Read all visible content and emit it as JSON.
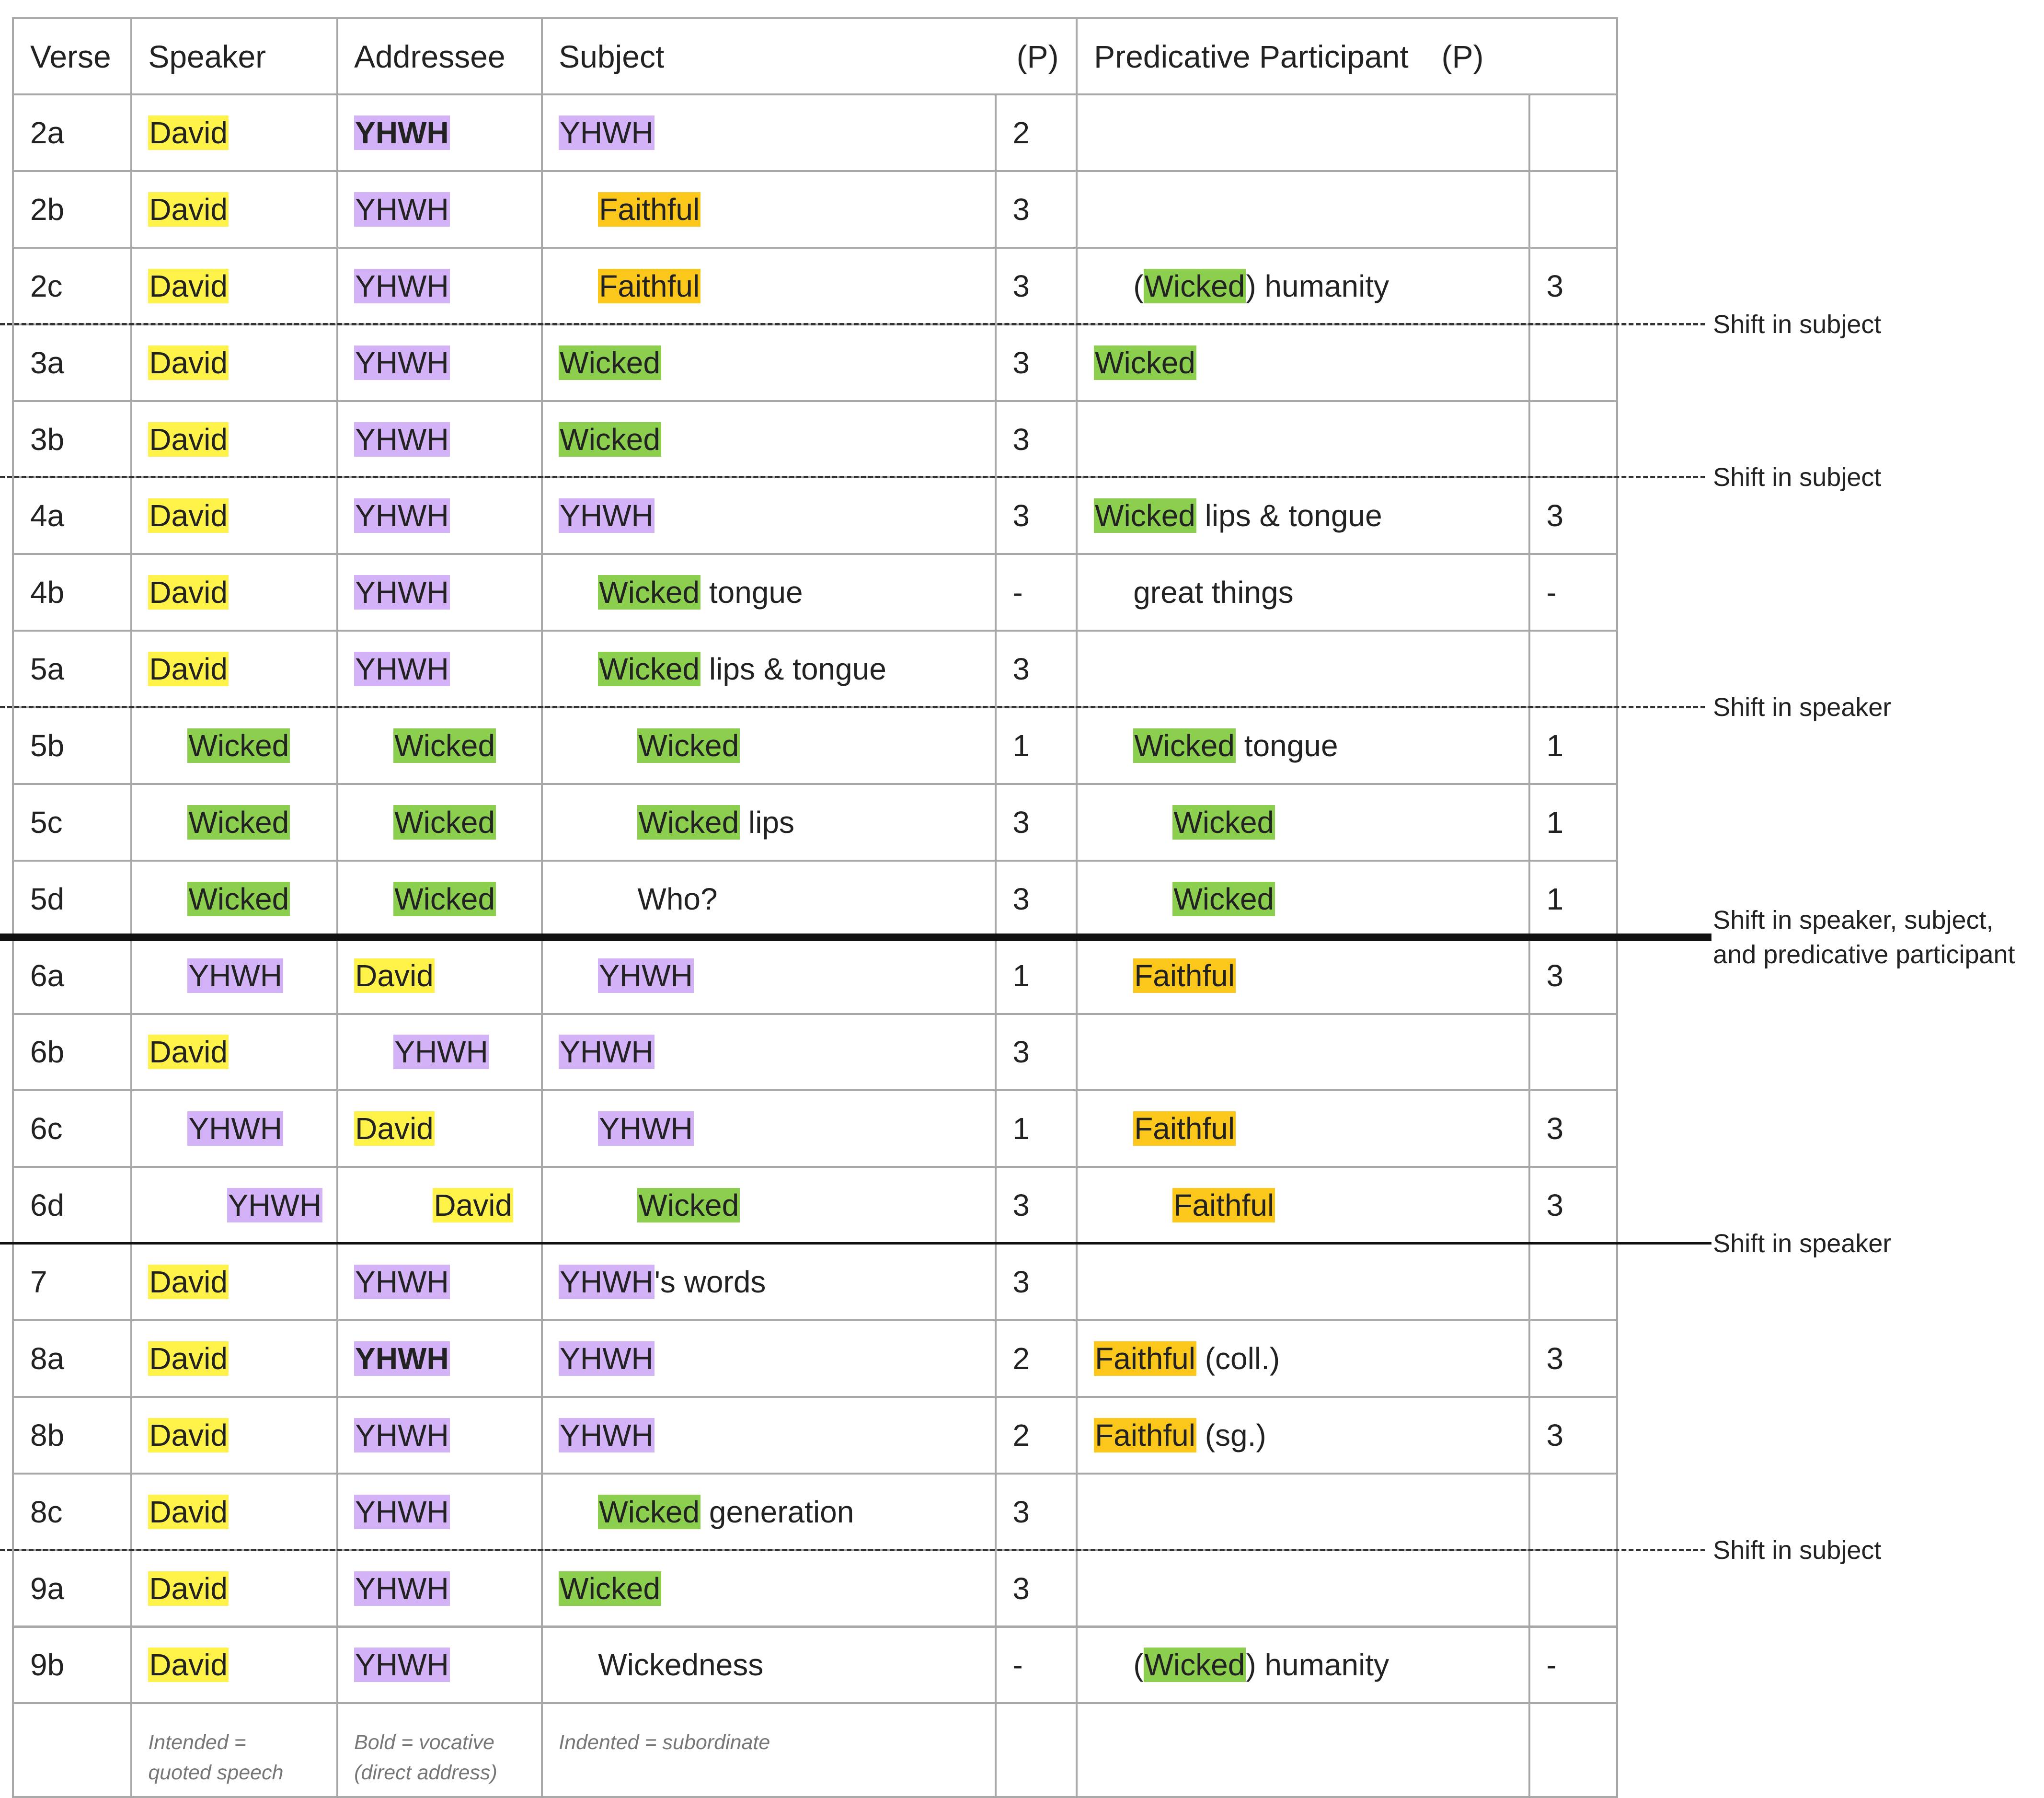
{
  "colors": {
    "yellow": "#fff34a",
    "purple": "#d3b2f7",
    "green": "#8ccf4f",
    "orange": "#fbc71a",
    "grid": "#a8a8a8"
  },
  "headers": {
    "verse": "Verse",
    "speaker": "Speaker",
    "addressee": "Addressee",
    "subject": "Subject",
    "subject_p": "(P)",
    "predicative": "Predicative Participant",
    "predicative_p": "(P)"
  },
  "rows": [
    {
      "verse": "2a",
      "speaker": {
        "indent": 0,
        "parts": [
          {
            "t": "David",
            "hl": "yellow"
          }
        ]
      },
      "addressee": {
        "indent": 0,
        "parts": [
          {
            "t": "YHWH",
            "hl": "purple",
            "bold": true
          }
        ]
      },
      "subject": {
        "indent": 0,
        "parts": [
          {
            "t": "YHWH",
            "hl": "purple"
          }
        ]
      },
      "subject_p": "2",
      "pred": {
        "indent": 0,
        "parts": []
      },
      "pred_p": ""
    },
    {
      "verse": "2b",
      "speaker": {
        "indent": 0,
        "parts": [
          {
            "t": "David",
            "hl": "yellow"
          }
        ]
      },
      "addressee": {
        "indent": 0,
        "parts": [
          {
            "t": "YHWH",
            "hl": "purple"
          }
        ]
      },
      "subject": {
        "indent": 1,
        "parts": [
          {
            "t": "Faithful",
            "hl": "orange"
          }
        ]
      },
      "subject_p": "3",
      "pred": {
        "indent": 0,
        "parts": []
      },
      "pred_p": ""
    },
    {
      "verse": "2c",
      "speaker": {
        "indent": 0,
        "parts": [
          {
            "t": "David",
            "hl": "yellow"
          }
        ]
      },
      "addressee": {
        "indent": 0,
        "parts": [
          {
            "t": "YHWH",
            "hl": "purple"
          }
        ]
      },
      "subject": {
        "indent": 1,
        "parts": [
          {
            "t": "Faithful",
            "hl": "orange"
          }
        ]
      },
      "subject_p": "3",
      "pred": {
        "indent": 1,
        "parts": [
          {
            "t": "("
          },
          {
            "t": "Wicked",
            "hl": "green"
          },
          {
            "t": ") humanity"
          }
        ]
      },
      "pred_p": "3"
    },
    {
      "verse": "3a",
      "speaker": {
        "indent": 0,
        "parts": [
          {
            "t": "David",
            "hl": "yellow"
          }
        ]
      },
      "addressee": {
        "indent": 0,
        "parts": [
          {
            "t": "YHWH",
            "hl": "purple"
          }
        ]
      },
      "subject": {
        "indent": 0,
        "parts": [
          {
            "t": "Wicked",
            "hl": "green"
          }
        ]
      },
      "subject_p": "3",
      "pred": {
        "indent": 0,
        "parts": [
          {
            "t": "Wicked",
            "hl": "green"
          }
        ]
      },
      "pred_p": ""
    },
    {
      "verse": "3b",
      "speaker": {
        "indent": 0,
        "parts": [
          {
            "t": "David",
            "hl": "yellow"
          }
        ]
      },
      "addressee": {
        "indent": 0,
        "parts": [
          {
            "t": "YHWH",
            "hl": "purple"
          }
        ]
      },
      "subject": {
        "indent": 0,
        "parts": [
          {
            "t": "Wicked",
            "hl": "green"
          }
        ]
      },
      "subject_p": "3",
      "pred": {
        "indent": 0,
        "parts": []
      },
      "pred_p": ""
    },
    {
      "verse": "4a",
      "speaker": {
        "indent": 0,
        "parts": [
          {
            "t": "David",
            "hl": "yellow"
          }
        ]
      },
      "addressee": {
        "indent": 0,
        "parts": [
          {
            "t": "YHWH",
            "hl": "purple"
          }
        ]
      },
      "subject": {
        "indent": 0,
        "parts": [
          {
            "t": "YHWH",
            "hl": "purple"
          }
        ]
      },
      "subject_p": "3",
      "pred": {
        "indent": 0,
        "parts": [
          {
            "t": "Wicked",
            "hl": "green"
          },
          {
            "t": " lips & tongue"
          }
        ]
      },
      "pred_p": "3"
    },
    {
      "verse": "4b",
      "speaker": {
        "indent": 0,
        "parts": [
          {
            "t": "David",
            "hl": "yellow"
          }
        ]
      },
      "addressee": {
        "indent": 0,
        "parts": [
          {
            "t": "YHWH",
            "hl": "purple"
          }
        ]
      },
      "subject": {
        "indent": 1,
        "parts": [
          {
            "t": "Wicked",
            "hl": "green"
          },
          {
            "t": " tongue"
          }
        ]
      },
      "subject_p": "-",
      "pred": {
        "indent": 1,
        "parts": [
          {
            "t": "great things"
          }
        ]
      },
      "pred_p": "-"
    },
    {
      "verse": "5a",
      "speaker": {
        "indent": 0,
        "parts": [
          {
            "t": "David",
            "hl": "yellow"
          }
        ]
      },
      "addressee": {
        "indent": 0,
        "parts": [
          {
            "t": "YHWH",
            "hl": "purple"
          }
        ]
      },
      "subject": {
        "indent": 1,
        "parts": [
          {
            "t": "Wicked",
            "hl": "green"
          },
          {
            "t": " lips & tongue"
          }
        ]
      },
      "subject_p": "3",
      "pred": {
        "indent": 0,
        "parts": []
      },
      "pred_p": ""
    },
    {
      "verse": "5b",
      "speaker": {
        "indent": 1,
        "parts": [
          {
            "t": "Wicked",
            "hl": "green"
          }
        ]
      },
      "addressee": {
        "indent": 1,
        "parts": [
          {
            "t": "Wicked",
            "hl": "green"
          }
        ]
      },
      "subject": {
        "indent": 2,
        "parts": [
          {
            "t": "Wicked",
            "hl": "green"
          }
        ]
      },
      "subject_p": "1",
      "pred": {
        "indent": 1,
        "parts": [
          {
            "t": "Wicked",
            "hl": "green"
          },
          {
            "t": " tongue"
          }
        ]
      },
      "pred_p": "1"
    },
    {
      "verse": "5c",
      "speaker": {
        "indent": 1,
        "parts": [
          {
            "t": "Wicked",
            "hl": "green"
          }
        ]
      },
      "addressee": {
        "indent": 1,
        "parts": [
          {
            "t": "Wicked",
            "hl": "green"
          }
        ]
      },
      "subject": {
        "indent": 2,
        "parts": [
          {
            "t": "Wicked",
            "hl": "green"
          },
          {
            "t": " lips"
          }
        ]
      },
      "subject_p": "3",
      "pred": {
        "indent": 2,
        "parts": [
          {
            "t": "Wicked",
            "hl": "green"
          }
        ]
      },
      "pred_p": "1"
    },
    {
      "verse": "5d",
      "speaker": {
        "indent": 1,
        "parts": [
          {
            "t": "Wicked",
            "hl": "green"
          }
        ]
      },
      "addressee": {
        "indent": 1,
        "parts": [
          {
            "t": "Wicked",
            "hl": "green"
          }
        ]
      },
      "subject": {
        "indent": 2,
        "parts": [
          {
            "t": "Who?"
          }
        ]
      },
      "subject_p": "3",
      "pred": {
        "indent": 2,
        "parts": [
          {
            "t": "Wicked",
            "hl": "green"
          }
        ]
      },
      "pred_p": "1"
    },
    {
      "verse": "6a",
      "speaker": {
        "indent": 1,
        "parts": [
          {
            "t": "YHWH",
            "hl": "purple"
          }
        ]
      },
      "addressee": {
        "indent": 0,
        "parts": [
          {
            "t": "David",
            "hl": "yellow"
          }
        ]
      },
      "subject": {
        "indent": 1,
        "parts": [
          {
            "t": "YHWH",
            "hl": "purple"
          }
        ]
      },
      "subject_p": "1",
      "pred": {
        "indent": 1,
        "parts": [
          {
            "t": "Faithful",
            "hl": "orange"
          }
        ]
      },
      "pred_p": "3"
    },
    {
      "verse": "6b",
      "speaker": {
        "indent": 0,
        "parts": [
          {
            "t": "David",
            "hl": "yellow"
          }
        ]
      },
      "addressee": {
        "indent": 1,
        "parts": [
          {
            "t": "YHWH",
            "hl": "purple"
          }
        ]
      },
      "subject": {
        "indent": 0,
        "parts": [
          {
            "t": "YHWH",
            "hl": "purple"
          }
        ]
      },
      "subject_p": "3",
      "pred": {
        "indent": 0,
        "parts": []
      },
      "pred_p": ""
    },
    {
      "verse": "6c",
      "speaker": {
        "indent": 1,
        "parts": [
          {
            "t": "YHWH",
            "hl": "purple"
          }
        ]
      },
      "addressee": {
        "indent": 0,
        "parts": [
          {
            "t": "David",
            "hl": "yellow"
          }
        ]
      },
      "subject": {
        "indent": 1,
        "parts": [
          {
            "t": "YHWH",
            "hl": "purple"
          }
        ]
      },
      "subject_p": "1",
      "pred": {
        "indent": 1,
        "parts": [
          {
            "t": "Faithful",
            "hl": "orange"
          }
        ]
      },
      "pred_p": "3"
    },
    {
      "verse": "6d",
      "speaker": {
        "indent": 2,
        "parts": [
          {
            "t": "YHWH",
            "hl": "purple"
          }
        ]
      },
      "addressee": {
        "indent": 2,
        "parts": [
          {
            "t": "David",
            "hl": "yellow"
          }
        ]
      },
      "subject": {
        "indent": 2,
        "parts": [
          {
            "t": "Wicked",
            "hl": "green"
          }
        ]
      },
      "subject_p": "3",
      "pred": {
        "indent": 2,
        "parts": [
          {
            "t": "Faithful",
            "hl": "orange"
          }
        ]
      },
      "pred_p": "3"
    },
    {
      "verse": "7",
      "speaker": {
        "indent": 0,
        "parts": [
          {
            "t": "David",
            "hl": "yellow"
          }
        ]
      },
      "addressee": {
        "indent": 0,
        "parts": [
          {
            "t": "YHWH",
            "hl": "purple"
          }
        ]
      },
      "subject": {
        "indent": 0,
        "parts": [
          {
            "t": "YHWH",
            "hl": "purple"
          },
          {
            "t": "'s words"
          }
        ]
      },
      "subject_p": "3",
      "pred": {
        "indent": 0,
        "parts": []
      },
      "pred_p": ""
    },
    {
      "verse": "8a",
      "speaker": {
        "indent": 0,
        "parts": [
          {
            "t": "David",
            "hl": "yellow"
          }
        ]
      },
      "addressee": {
        "indent": 0,
        "parts": [
          {
            "t": "YHWH",
            "hl": "purple",
            "bold": true
          }
        ]
      },
      "subject": {
        "indent": 0,
        "parts": [
          {
            "t": "YHWH",
            "hl": "purple"
          }
        ]
      },
      "subject_p": "2",
      "pred": {
        "indent": 0,
        "parts": [
          {
            "t": "Faithful",
            "hl": "orange"
          },
          {
            "t": " (coll.)"
          }
        ]
      },
      "pred_p": "3"
    },
    {
      "verse": "8b",
      "speaker": {
        "indent": 0,
        "parts": [
          {
            "t": "David",
            "hl": "yellow"
          }
        ]
      },
      "addressee": {
        "indent": 0,
        "parts": [
          {
            "t": "YHWH",
            "hl": "purple"
          }
        ]
      },
      "subject": {
        "indent": 0,
        "parts": [
          {
            "t": "YHWH",
            "hl": "purple"
          }
        ]
      },
      "subject_p": "2",
      "pred": {
        "indent": 0,
        "parts": [
          {
            "t": "Faithful",
            "hl": "orange"
          },
          {
            "t": " (sg.)"
          }
        ]
      },
      "pred_p": "3"
    },
    {
      "verse": "8c",
      "speaker": {
        "indent": 0,
        "parts": [
          {
            "t": "David",
            "hl": "yellow"
          }
        ]
      },
      "addressee": {
        "indent": 0,
        "parts": [
          {
            "t": "YHWH",
            "hl": "purple"
          }
        ]
      },
      "subject": {
        "indent": 1,
        "parts": [
          {
            "t": "Wicked",
            "hl": "green"
          },
          {
            "t": " generation"
          }
        ]
      },
      "subject_p": "3",
      "pred": {
        "indent": 0,
        "parts": []
      },
      "pred_p": ""
    },
    {
      "verse": "9a",
      "speaker": {
        "indent": 0,
        "parts": [
          {
            "t": "David",
            "hl": "yellow"
          }
        ]
      },
      "addressee": {
        "indent": 0,
        "parts": [
          {
            "t": "YHWH",
            "hl": "purple"
          }
        ]
      },
      "subject": {
        "indent": 0,
        "parts": [
          {
            "t": "Wicked",
            "hl": "green"
          }
        ]
      },
      "subject_p": "3",
      "pred": {
        "indent": 0,
        "parts": []
      },
      "pred_p": ""
    },
    {
      "verse": "9b",
      "speaker": {
        "indent": 0,
        "parts": [
          {
            "t": "David",
            "hl": "yellow"
          }
        ]
      },
      "addressee": {
        "indent": 0,
        "parts": [
          {
            "t": "YHWH",
            "hl": "purple"
          }
        ]
      },
      "subject": {
        "indent": 1,
        "parts": [
          {
            "t": "Wickedness"
          }
        ]
      },
      "subject_p": "-",
      "pred": {
        "indent": 1,
        "parts": [
          {
            "t": "("
          },
          {
            "t": "Wicked",
            "hl": "green"
          },
          {
            "t": ") humanity"
          }
        ]
      },
      "pred_p": "-"
    }
  ],
  "notes": {
    "speaker": [
      "Intended =",
      "quoted speech"
    ],
    "addressee": [
      "Bold = vocative",
      "(direct address)"
    ],
    "subject": [
      "Indented = subordinate"
    ]
  },
  "annotations": [
    {
      "after": "2c",
      "style": "dashed",
      "text": [
        "Shift in subject"
      ]
    },
    {
      "after": "3b",
      "style": "dashed",
      "text": [
        "Shift in subject"
      ]
    },
    {
      "after": "5a",
      "style": "dashed",
      "text": [
        "Shift in speaker"
      ]
    },
    {
      "after": "5d",
      "style": "thick",
      "text": [
        "Shift in speaker, subject,",
        " and predicative participant"
      ]
    },
    {
      "after": "6d",
      "style": "thin",
      "text": [
        "Shift in speaker"
      ]
    },
    {
      "after": "8c",
      "style": "dashed",
      "text": [
        "Shift in subject"
      ]
    }
  ]
}
